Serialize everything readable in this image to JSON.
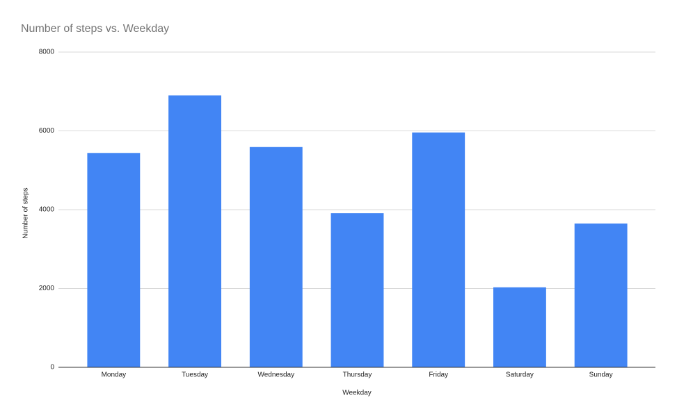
{
  "chart_data": {
    "type": "bar",
    "title": "Number of steps vs. Weekday",
    "x_label": "Weekday",
    "y_label": "Number of steps",
    "categories": [
      "Monday",
      "Tuesday",
      "Wednesday",
      "Thursday",
      "Friday",
      "Saturday",
      "Sunday"
    ],
    "values": [
      5440,
      6900,
      5590,
      3910,
      5960,
      2030,
      3650
    ],
    "color": "#4285f4",
    "ylim": [
      0,
      8000
    ],
    "yticks": [
      0,
      2000,
      4000,
      6000,
      8000
    ],
    "grid": true
  }
}
